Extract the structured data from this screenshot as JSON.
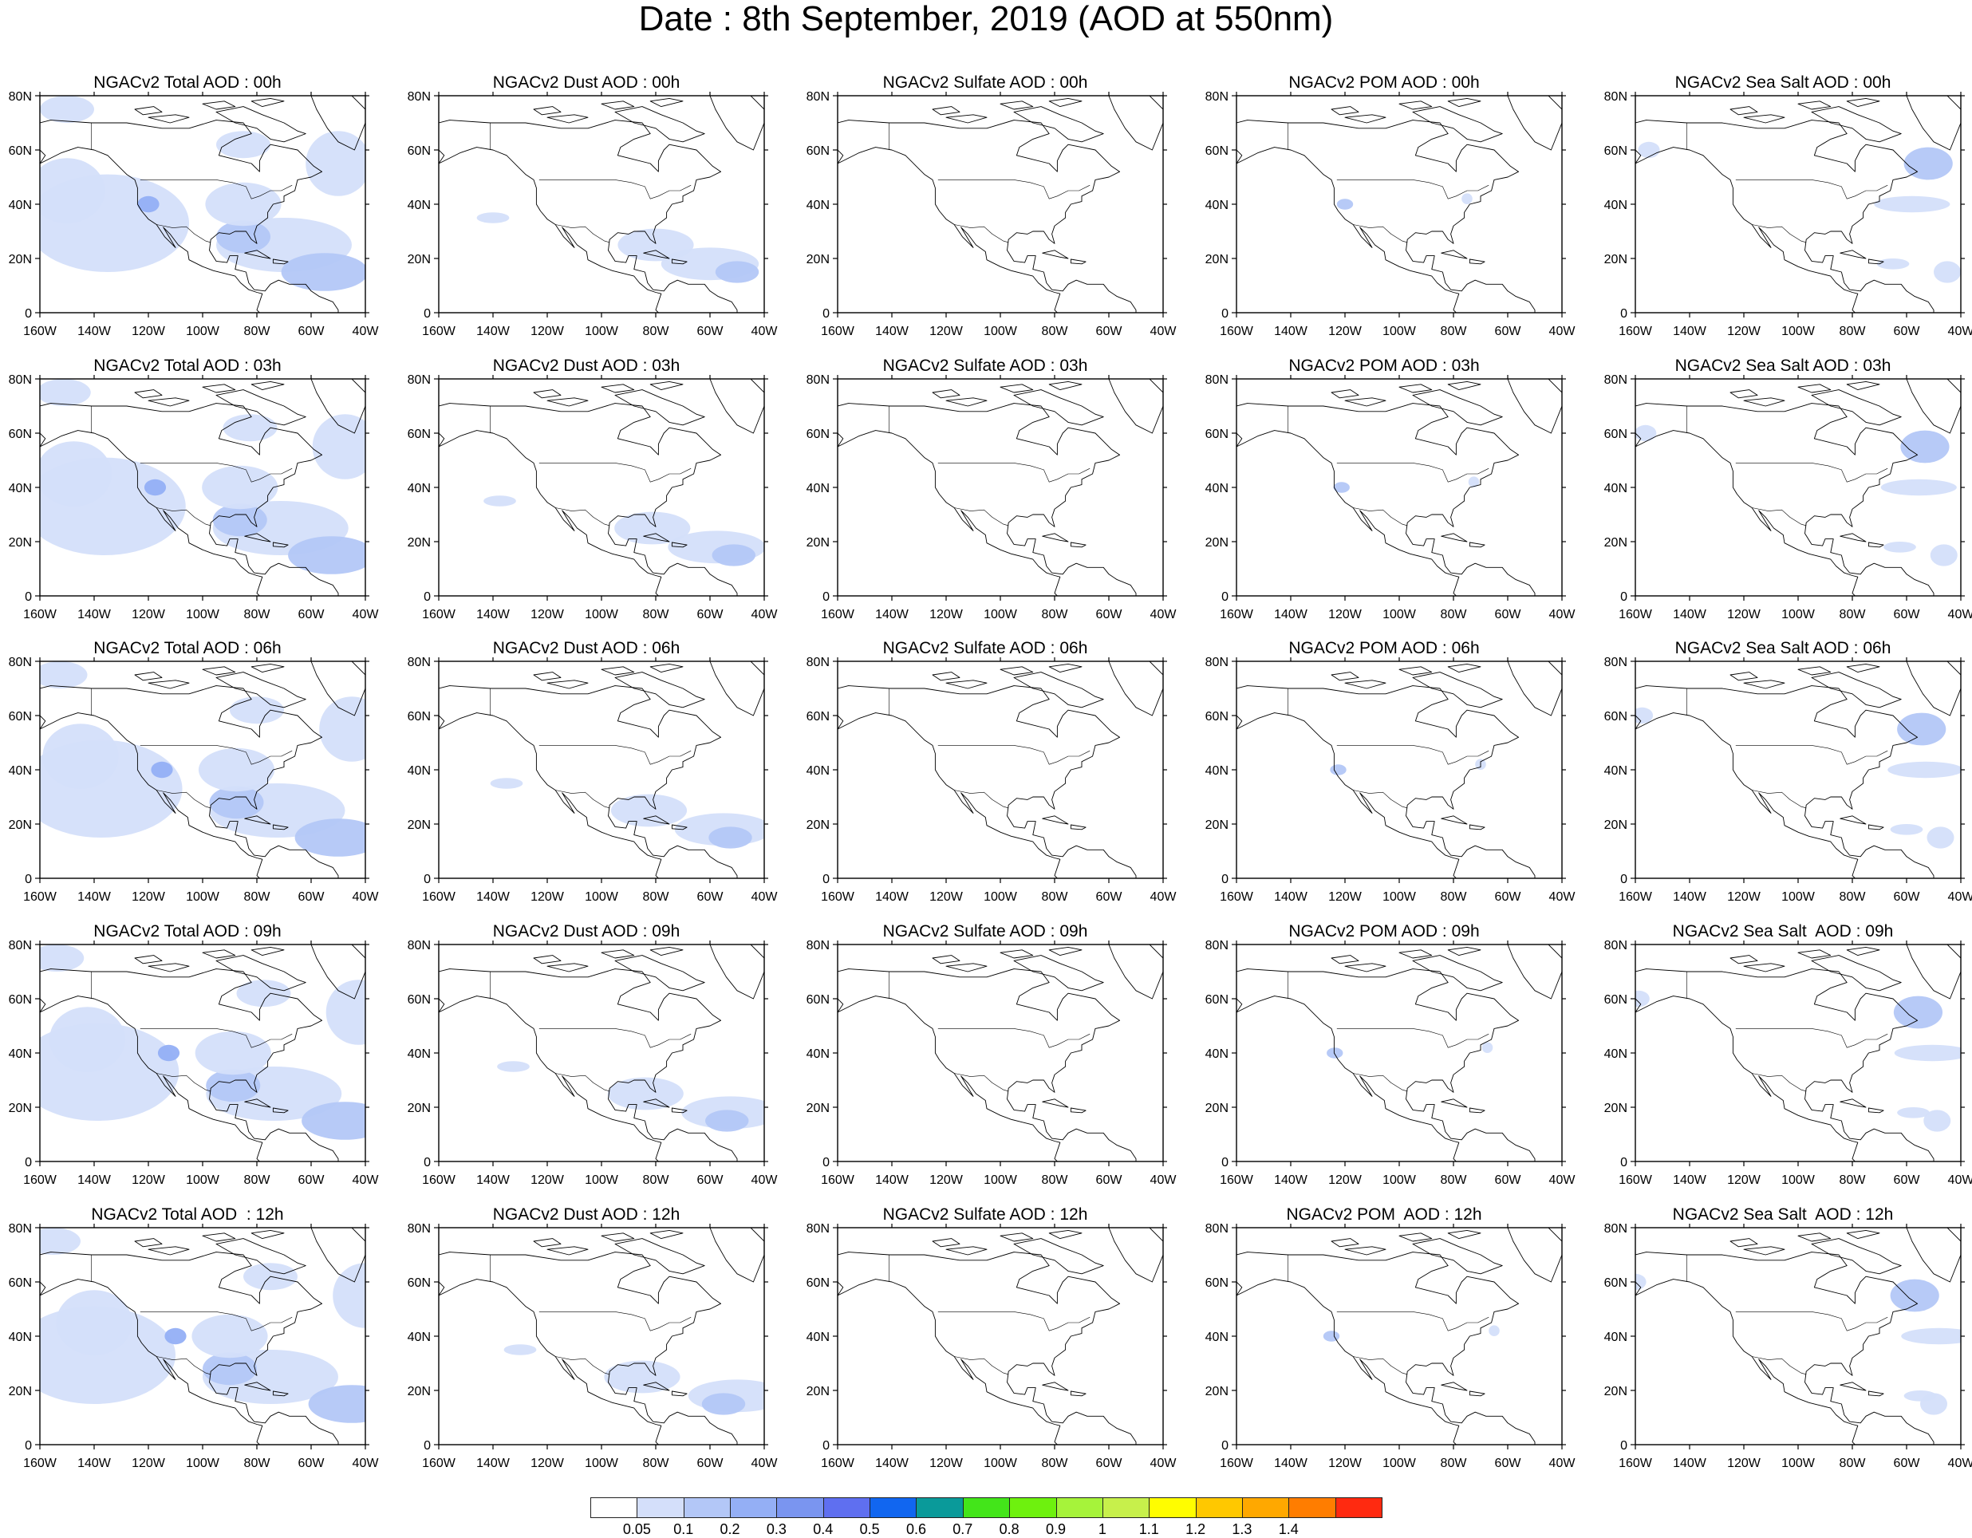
{
  "figure": {
    "title": "Date : 8th September, 2019 (AOD at 550nm)"
  },
  "columns": [
    {
      "id": "total",
      "name": "NGACv2 Total AOD"
    },
    {
      "id": "dust",
      "name": "NGACv2 Dust AOD"
    },
    {
      "id": "sulfate",
      "name": "NGACv2 Sulfate AOD"
    },
    {
      "id": "pom",
      "name": "NGACv2 POM AOD"
    },
    {
      "id": "seasalt",
      "name": "NGACv2 Sea Salt AOD"
    }
  ],
  "panel_titles": [
    [
      "NGACv2 Total AOD : 00h",
      "NGACv2 Dust AOD : 00h",
      "NGACv2 Sulfate AOD : 00h",
      "NGACv2 POM AOD : 00h",
      "NGACv2 Sea Salt AOD : 00h"
    ],
    [
      "NGACv2 Total AOD : 03h",
      "NGACv2 Dust AOD : 03h",
      "NGACv2 Sulfate AOD : 03h",
      "NGACv2 POM AOD : 03h",
      "NGACv2 Sea Salt AOD : 03h"
    ],
    [
      "NGACv2 Total AOD : 06h",
      "NGACv2 Dust AOD : 06h",
      "NGACv2 Sulfate AOD : 06h",
      "NGACv2 POM AOD : 06h",
      "NGACv2 Sea Salt AOD : 06h"
    ],
    [
      "NGACv2 Total AOD : 09h",
      "NGACv2 Dust AOD : 09h",
      "NGACv2 Sulfate AOD : 09h",
      "NGACv2 POM AOD : 09h",
      "NGACv2 Sea Salt  AOD : 09h"
    ],
    [
      "NGACv2 Total AOD  : 12h",
      "NGACv2 Dust AOD : 12h",
      "NGACv2 Sulfate AOD : 12h",
      "NGACv2 POM  AOD : 12h",
      "NGACv2 Sea Salt  AOD : 12h"
    ]
  ],
  "map": {
    "lon_ticks": [
      "160W",
      "140W",
      "120W",
      "100W",
      "80W",
      "60W",
      "40W"
    ],
    "lat_ticks": [
      "0",
      "20N",
      "40N",
      "60N",
      "80N"
    ],
    "lon_range": [
      -160,
      -40
    ],
    "lat_range": [
      0,
      80
    ],
    "land_color": "#ffffff",
    "coast_color": "#000000"
  },
  "colorbar": {
    "labels": [
      "0.05",
      "0.1",
      "0.2",
      "0.3",
      "0.4",
      "0.5",
      "0.6",
      "0.7",
      "0.8",
      "0.9",
      "1",
      "1.1",
      "1.2",
      "1.3",
      "1.4"
    ],
    "colors": [
      "#ffffff",
      "#d4dffa",
      "#b3c7f7",
      "#94aff5",
      "#7a95f0",
      "#5f6ff0",
      "#1166f0",
      "#0a9a9a",
      "#43e51a",
      "#6ef10e",
      "#a6f33a",
      "#c7f04b",
      "#fffd00",
      "#ffc800",
      "#ffa800",
      "#ff7d00",
      "#ff2a10"
    ]
  },
  "chart_data": {
    "type": "heatmap",
    "title": "Date : 8th September, 2019 (AOD at 550nm)",
    "variable": "AOD at 550nm",
    "date": "8th September, 2019",
    "times": [
      "00h",
      "03h",
      "06h",
      "09h",
      "12h"
    ],
    "species": [
      "Total",
      "Dust",
      "Sulfate",
      "POM",
      "Sea Salt"
    ],
    "color_levels": [
      0.05,
      0.1,
      0.2,
      0.3,
      0.4,
      0.5,
      0.6,
      0.7,
      0.8,
      0.9,
      1,
      1.1,
      1.2,
      1.3,
      1.4
    ],
    "regions_description": {
      "total": "AOD 0.05-0.3 over Pacific west of US, California hotspot ~0.3-0.4, Gulf of Mexico/Caribbean and tropical Atlantic 0.1-0.3, NW Atlantic off Canada 0.1-0.2",
      "dust": "AOD 0.05-0.2 over Gulf of Mexico, Caribbean and tropical Atlantic 10-25N",
      "sulfate": "AOD below 0.05 everywhere",
      "pom": "AOD 0.1-0.3 near northern California 40N 120W",
      "seasalt": "AOD 0.05-0.2 over North Atlantic 40-60N and scattered areas of Pacific"
    },
    "plumes": {
      "total": [
        {
          "lon": -135,
          "lat": 33,
          "rx": 30,
          "ry": 18,
          "level": 1
        },
        {
          "lon": -150,
          "lat": 45,
          "rx": 14,
          "ry": 12,
          "level": 1
        },
        {
          "lon": -150,
          "lat": 75,
          "rx": 10,
          "ry": 5,
          "level": 1
        },
        {
          "lon": -120,
          "lat": 40,
          "rx": 4,
          "ry": 3,
          "level": 3
        },
        {
          "lon": -70,
          "lat": 25,
          "rx": 25,
          "ry": 10,
          "level": 1
        },
        {
          "lon": -55,
          "lat": 15,
          "rx": 16,
          "ry": 7,
          "level": 2
        },
        {
          "lon": -85,
          "lat": 28,
          "rx": 10,
          "ry": 6,
          "level": 2
        },
        {
          "lon": -50,
          "lat": 55,
          "rx": 12,
          "ry": 12,
          "level": 1
        },
        {
          "lon": -85,
          "lat": 40,
          "rx": 14,
          "ry": 8,
          "level": 1
        },
        {
          "lon": -85,
          "lat": 62,
          "rx": 10,
          "ry": 5,
          "level": 1
        }
      ],
      "dust": [
        {
          "lon": -80,
          "lat": 25,
          "rx": 14,
          "ry": 6,
          "level": 1
        },
        {
          "lon": -60,
          "lat": 18,
          "rx": 18,
          "ry": 6,
          "level": 1
        },
        {
          "lon": -50,
          "lat": 15,
          "rx": 8,
          "ry": 4,
          "level": 2
        },
        {
          "lon": -140,
          "lat": 35,
          "rx": 6,
          "ry": 2,
          "level": 1
        }
      ],
      "sulfate": [],
      "pom": [
        {
          "lon": -120,
          "lat": 40,
          "rx": 3,
          "ry": 2,
          "level": 2
        },
        {
          "lon": -75,
          "lat": 42,
          "rx": 2,
          "ry": 2,
          "level": 1
        }
      ],
      "seasalt": [
        {
          "lon": -52,
          "lat": 55,
          "rx": 9,
          "ry": 6,
          "level": 2
        },
        {
          "lon": -58,
          "lat": 40,
          "rx": 14,
          "ry": 3,
          "level": 1
        },
        {
          "lon": -45,
          "lat": 15,
          "rx": 5,
          "ry": 4,
          "level": 1
        },
        {
          "lon": -65,
          "lat": 18,
          "rx": 6,
          "ry": 2,
          "level": 1
        },
        {
          "lon": -155,
          "lat": 60,
          "rx": 4,
          "ry": 3,
          "level": 1
        }
      ]
    }
  }
}
